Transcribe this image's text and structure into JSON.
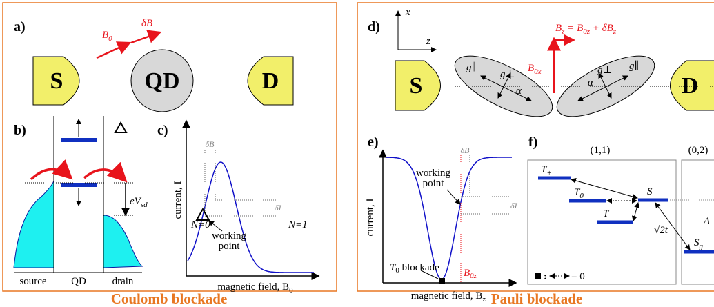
{
  "coulomb": {
    "title": "Coulomb blockade",
    "a": {
      "label": "a)",
      "B0": {
        "base": "B",
        "sub": "0"
      },
      "dB": "δB",
      "S": "S",
      "QD": "QD",
      "D": "D"
    },
    "b": {
      "label": "b)",
      "eVsd": {
        "base": "eV",
        "sub": "sd"
      },
      "source": "source",
      "qd": "QD",
      "drain": "drain"
    },
    "c": {
      "label": "c)",
      "dB": "δB",
      "dI": "δI",
      "ylabel": "current, I",
      "xlabel": {
        "base": "magnetic field, B",
        "sub": "0"
      },
      "n0": "N=0",
      "n1": "N=1",
      "wp": [
        "working",
        "point"
      ]
    }
  },
  "pauli": {
    "title": "Pauli blockade",
    "d": {
      "label": "d)",
      "x": "x",
      "z": "z",
      "Bz": {
        "base": "B",
        "sub": "z",
        "mid": " = B",
        "sub2": "0z",
        "end": " + δB",
        "sub3": "z"
      },
      "B0x": {
        "base": "B",
        "sub": "0x"
      },
      "S": "S",
      "D": "D",
      "gpar": "g∥",
      "gperp": "g⊥",
      "alpha": "α"
    },
    "e": {
      "label": "e)",
      "dB": "δB",
      "dI": "δI",
      "ylabel": "current, I",
      "wp": [
        "working",
        "point"
      ],
      "blockade": {
        "base": "T",
        "sub": "0",
        "end": " blockade"
      },
      "B0z": {
        "base": "B",
        "sub": "0z"
      },
      "xlabel": {
        "base": "magnetic field, B",
        "sub": "z"
      }
    },
    "f": {
      "label": "f)",
      "g11": "(1,1)",
      "g02": "(0,2)",
      "Tp": {
        "base": "T",
        "sub": "+"
      },
      "T0": {
        "base": "T",
        "sub": "0"
      },
      "Tm": {
        "base": "T",
        "sub": "−"
      },
      "S": "S",
      "t": "√2t",
      "Delta": "Δ",
      "Sg": {
        "base": "S",
        "sub": "g"
      },
      "legend": "= 0"
    }
  }
}
